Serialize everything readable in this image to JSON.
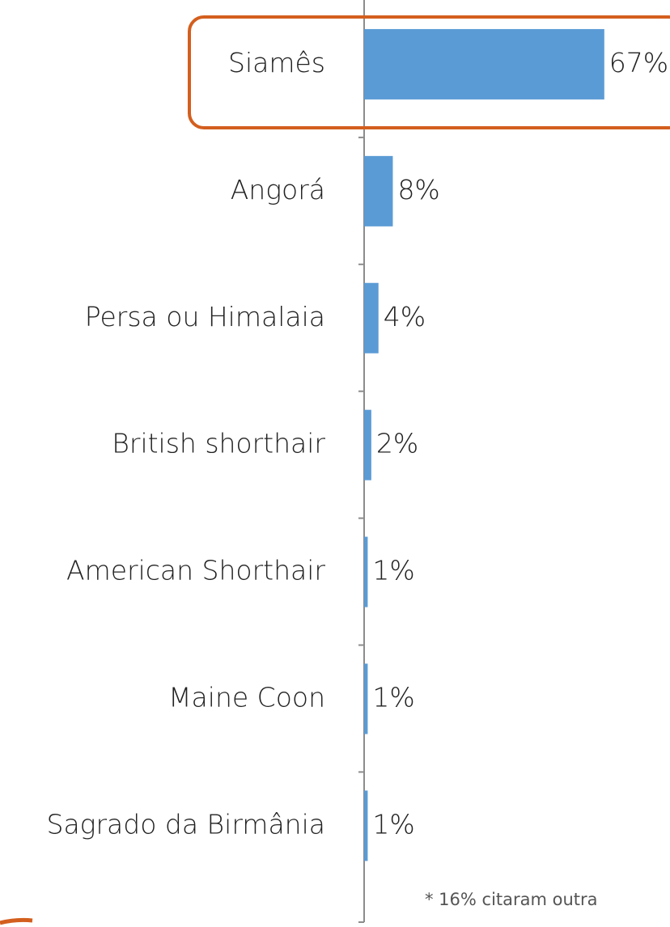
{
  "chart_data": {
    "type": "bar",
    "orientation": "horizontal",
    "categories": [
      "Siamês",
      "Angorá",
      "Persa ou Himalaia",
      "British shorthair",
      "American Shorthair",
      "Maine Coon",
      "Sagrado da Birmânia"
    ],
    "values": [
      67,
      8,
      4,
      2,
      1,
      1,
      1
    ],
    "value_labels": [
      "67%",
      "8%",
      "4%",
      "2%",
      "1%",
      "1%",
      "1%"
    ],
    "color": "#5b9bd5",
    "footnote": "* 16% citaram outra"
  }
}
